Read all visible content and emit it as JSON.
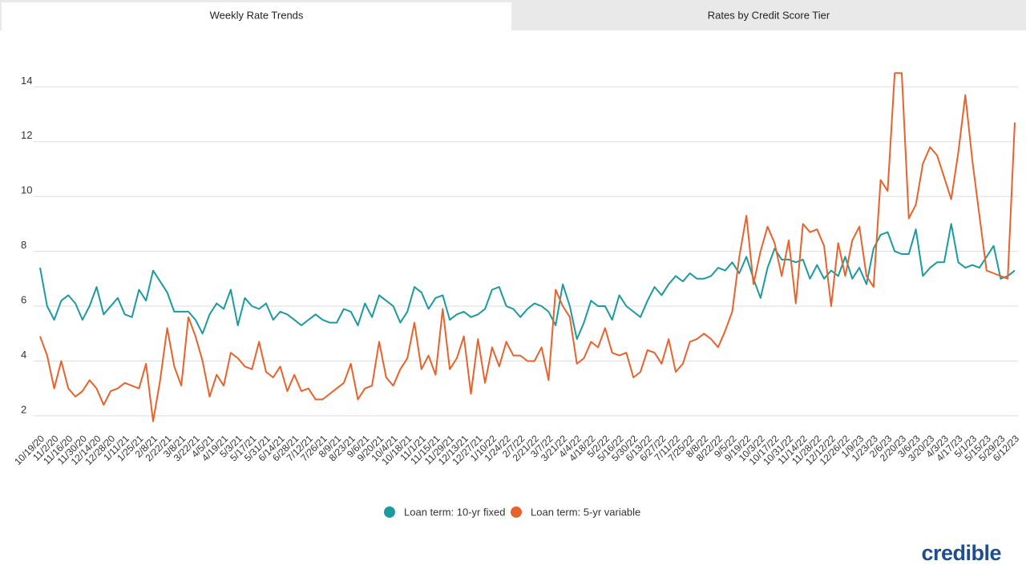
{
  "tabs": [
    "Weekly Rate Trends",
    "Rates by Credit Score Tier"
  ],
  "logo": "credible",
  "chart_data": {
    "type": "line",
    "categories": [
      "10/19/20",
      null,
      "11/2/20",
      null,
      "11/16/20",
      null,
      "11/30/20",
      null,
      "12/14/20",
      null,
      "12/28/20",
      null,
      "1/11/21",
      null,
      "1/25/21",
      null,
      "2/8/21",
      null,
      "2/22/21",
      null,
      "3/8/21",
      null,
      "3/22/21",
      null,
      "4/5/21",
      null,
      "4/19/21",
      null,
      "5/3/21",
      null,
      "5/17/21",
      null,
      "5/31/21",
      null,
      "6/14/21",
      null,
      "6/28/21",
      null,
      "7/12/21",
      null,
      "7/26/21",
      null,
      "8/9/21",
      null,
      "8/23/21",
      null,
      "9/6/21",
      null,
      "9/20/21",
      null,
      "10/4/21",
      null,
      "10/18/21",
      null,
      "11/1/21",
      null,
      "11/15/21",
      null,
      "11/29/21",
      null,
      "12/13/21",
      null,
      "12/27/21",
      null,
      "1/10/22",
      null,
      "1/24/22",
      null,
      "2/7/22",
      null,
      "2/21/22",
      null,
      "3/7/22",
      null,
      "3/21/22",
      null,
      "4/4/22",
      null,
      "4/18/22",
      null,
      "5/2/22",
      null,
      "5/16/22",
      null,
      "5/30/22",
      null,
      "6/13/22",
      null,
      "6/27/22",
      null,
      "7/11/22",
      null,
      "7/25/22",
      null,
      "8/8/22",
      null,
      "8/22/22",
      null,
      "9/5/22",
      null,
      "9/19/22",
      null,
      "10/3/22",
      null,
      "10/17/22",
      null,
      "10/31/22",
      null,
      "11/14/22",
      null,
      "11/28/22",
      null,
      "12/12/22",
      null,
      "12/26/22",
      null,
      "1/9/23",
      null,
      "1/23/23",
      null,
      "2/6/23",
      null,
      "2/20/23",
      null,
      "3/6/23",
      null,
      "3/20/23",
      null,
      "4/3/23",
      null,
      "4/17/23",
      null,
      "5/1/23",
      null,
      "5/15/23",
      null,
      "5/29/23",
      null,
      "6/12/23"
    ],
    "series": [
      {
        "name": "Loan term: 10-yr fixed",
        "color": "#1b9aa0",
        "values": [
          7.4,
          6.0,
          5.5,
          6.2,
          6.4,
          6.1,
          5.5,
          6.0,
          6.7,
          5.7,
          6.0,
          6.3,
          5.7,
          5.6,
          6.6,
          6.2,
          7.3,
          6.9,
          6.5,
          5.8,
          5.8,
          5.8,
          5.5,
          5.0,
          5.7,
          6.1,
          5.9,
          6.6,
          5.3,
          6.3,
          6.0,
          5.9,
          6.1,
          5.5,
          5.8,
          5.7,
          5.5,
          5.3,
          5.5,
          5.7,
          5.5,
          5.4,
          5.4,
          5.9,
          5.8,
          5.3,
          6.1,
          5.6,
          6.4,
          6.2,
          6.0,
          5.4,
          5.8,
          6.7,
          6.5,
          5.9,
          6.3,
          6.4,
          5.5,
          5.7,
          5.8,
          5.6,
          5.7,
          5.9,
          6.6,
          6.7,
          6.0,
          5.9,
          5.6,
          5.9,
          6.1,
          6.0,
          5.8,
          5.3,
          6.8,
          6.0,
          4.8,
          5.4,
          6.2,
          6.0,
          6.0,
          5.5,
          6.4,
          6.0,
          5.8,
          5.6,
          6.2,
          6.7,
          6.4,
          6.8,
          7.1,
          6.9,
          7.2,
          7.0,
          7.0,
          7.1,
          7.4,
          7.3,
          7.6,
          7.2,
          7.8,
          7.0,
          6.3,
          7.4,
          8.1,
          7.7,
          7.7,
          7.6,
          7.7,
          7.0,
          7.5,
          7.0,
          7.3,
          7.1,
          7.8,
          7.0,
          7.4,
          6.8,
          8.1,
          8.6,
          8.7,
          8.0,
          7.9,
          7.9,
          8.8,
          7.1,
          7.4,
          7.6,
          7.6,
          9.0,
          7.6,
          7.4,
          7.5,
          7.4,
          7.8,
          8.2,
          7.0,
          7.1,
          7.3
        ]
      },
      {
        "name": "Loan term: 5-yr variable",
        "color": "#e8632b",
        "values": [
          4.9,
          4.2,
          3.0,
          4.0,
          3.0,
          2.7,
          2.9,
          3.3,
          3.0,
          2.4,
          2.9,
          3.0,
          3.2,
          3.1,
          3.0,
          3.9,
          1.8,
          3.3,
          5.2,
          3.8,
          3.1,
          5.6,
          4.9,
          4.0,
          2.7,
          3.5,
          3.1,
          4.3,
          4.1,
          3.8,
          3.7,
          4.7,
          3.6,
          3.4,
          3.8,
          2.9,
          3.5,
          2.9,
          3.0,
          2.6,
          2.6,
          2.8,
          3.0,
          3.2,
          3.9,
          2.6,
          3.0,
          3.1,
          4.7,
          3.4,
          3.1,
          3.7,
          4.1,
          5.4,
          3.7,
          4.2,
          3.5,
          5.9,
          3.7,
          4.1,
          4.9,
          2.8,
          4.8,
          3.2,
          4.5,
          3.8,
          4.7,
          4.2,
          4.2,
          4.0,
          4.0,
          4.5,
          3.3,
          6.6,
          6.0,
          5.6,
          3.9,
          4.1,
          4.7,
          4.5,
          5.2,
          4.3,
          4.2,
          4.3,
          3.4,
          3.6,
          4.4,
          4.3,
          3.9,
          4.8,
          3.6,
          3.9,
          4.7,
          4.8,
          5.0,
          4.8,
          4.5,
          5.1,
          5.8,
          7.8,
          9.3,
          6.8,
          8.0,
          8.9,
          8.3,
          7.1,
          8.4,
          6.1,
          9.0,
          8.7,
          8.8,
          8.2,
          6.0,
          8.3,
          7.1,
          8.4,
          8.9,
          7.1,
          6.7,
          10.6,
          10.2,
          14.5,
          14.5,
          9.2,
          9.7,
          11.2,
          11.8,
          11.5,
          10.7,
          9.9,
          11.6,
          13.7,
          11.3,
          9.3,
          7.3,
          7.2,
          7.1,
          7.0,
          12.7
        ]
      }
    ],
    "ylim": [
      1.5,
      15.5
    ],
    "yticks": [
      2,
      4,
      6,
      8,
      10,
      12,
      14
    ],
    "grid": true,
    "legend": "bottom"
  }
}
